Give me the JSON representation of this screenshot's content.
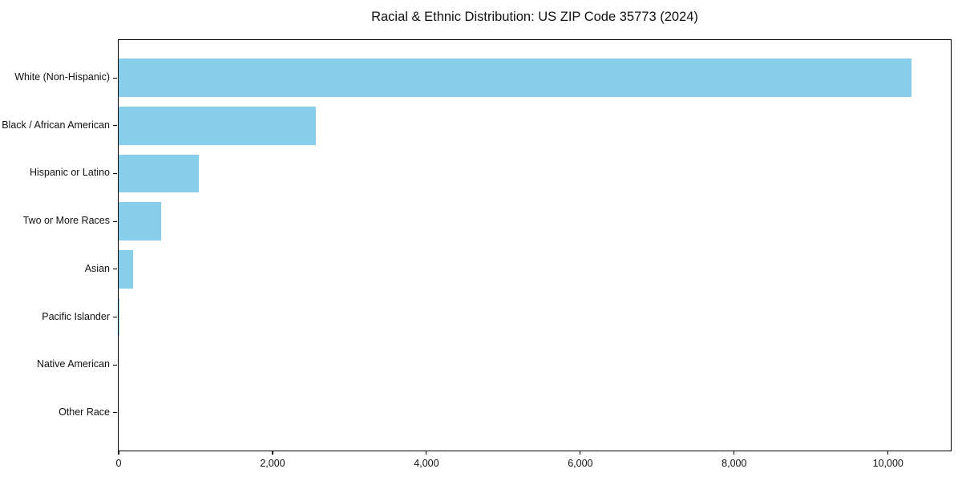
{
  "chart_data": {
    "type": "bar",
    "orientation": "horizontal",
    "title": "Racial & Ethnic Distribution: US ZIP Code 35773 (2024)",
    "categories": [
      "White (Non-Hispanic)",
      "Black / African American",
      "Hispanic or Latino",
      "Two or More Races",
      "Asian",
      "Pacific Islander",
      "Native American",
      "Other Race"
    ],
    "values": [
      10300,
      2560,
      1040,
      550,
      185,
      10,
      0,
      0
    ],
    "xlabel": "",
    "ylabel": "",
    "xlim": [
      0,
      10815
    ],
    "x_ticks": [
      0,
      2000,
      4000,
      6000,
      8000,
      10000
    ],
    "x_tick_labels": [
      "0",
      "2,000",
      "4,000",
      "6,000",
      "8,000",
      "10,000"
    ],
    "bar_color": "#87CEEB",
    "background_color": "#ffffff",
    "spine_color": "#000000",
    "grid": false,
    "legend": false
  }
}
